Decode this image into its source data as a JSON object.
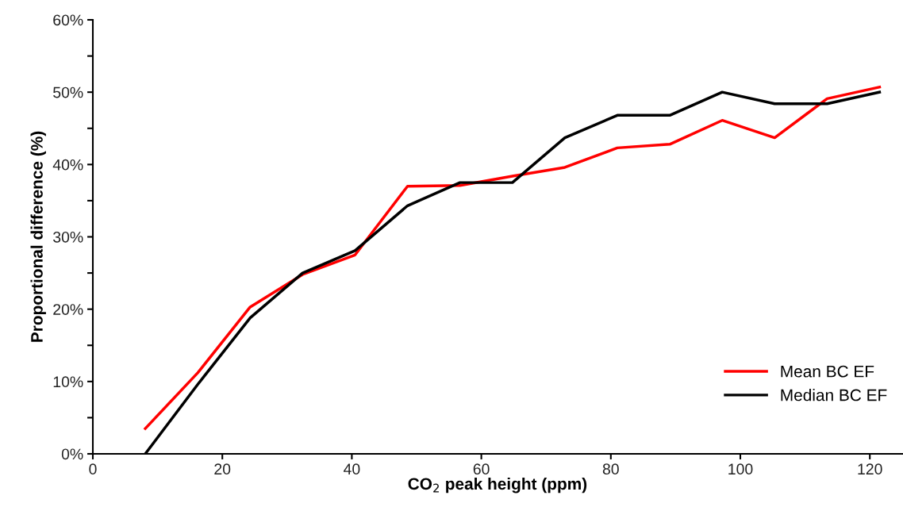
{
  "chart_data": {
    "type": "line",
    "xlabel": "CO$_{2}$ peak height (ppm)",
    "ylabel": "Proportional difference (%)",
    "x": [
      8.1,
      16.2,
      24.3,
      32.4,
      40.5,
      48.6,
      56.7,
      64.8,
      72.9,
      81.0,
      89.1,
      97.2,
      105.3,
      113.4,
      121.5
    ],
    "series": [
      {
        "name": "Mean BC EF",
        "color": "#ff0000",
        "values": [
          3.5,
          11.2,
          20.3,
          24.8,
          27.5,
          37.0,
          37.1,
          38.4,
          39.6,
          42.3,
          42.8,
          46.1,
          43.7,
          49.1,
          50.7
        ]
      },
      {
        "name": "Median BC EF",
        "color": "#000000",
        "values": [
          0,
          9.6,
          18.8,
          25.0,
          28.1,
          34.3,
          37.5,
          37.5,
          43.7,
          46.8,
          46.8,
          50.0,
          48.4,
          48.4,
          50.0
        ]
      }
    ],
    "xlim": [
      0,
      125
    ],
    "xticks": [
      0,
      20,
      40,
      60,
      80,
      100,
      120
    ],
    "ylim": [
      0,
      60
    ],
    "yticks": [
      {
        "value": 0,
        "label": "0%"
      },
      {
        "value": 5,
        "label": null
      },
      {
        "value": 10,
        "label": "10%"
      },
      {
        "value": 15,
        "label": null
      },
      {
        "value": 20,
        "label": "20%"
      },
      {
        "value": 25,
        "label": null
      },
      {
        "value": 30,
        "label": "30%"
      },
      {
        "value": 35,
        "label": null
      },
      {
        "value": 40,
        "label": "40%"
      },
      {
        "value": 45,
        "label": null
      },
      {
        "value": 50,
        "label": "50%"
      },
      {
        "value": 55,
        "label": null
      },
      {
        "value": 60,
        "label": "60%"
      }
    ],
    "legend": "bottom right",
    "grid": false,
    "marker": "none",
    "line_style": "solid"
  }
}
